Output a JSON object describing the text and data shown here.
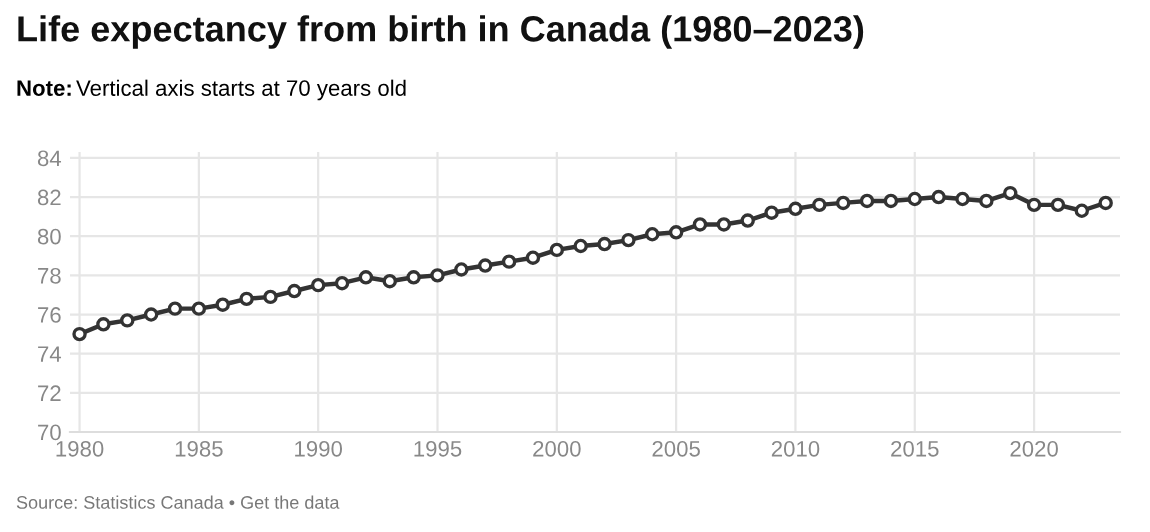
{
  "chart_data": {
    "type": "line",
    "title": "Life expectancy from birth in Canada (1980–2023)",
    "subtitle": "Note: Vertical axis starts at 70 years old",
    "x": [
      1980,
      1981,
      1982,
      1983,
      1984,
      1985,
      1986,
      1987,
      1988,
      1989,
      1990,
      1991,
      1992,
      1993,
      1994,
      1995,
      1996,
      1997,
      1998,
      1999,
      2000,
      2001,
      2002,
      2003,
      2004,
      2005,
      2006,
      2007,
      2008,
      2009,
      2010,
      2011,
      2012,
      2013,
      2014,
      2015,
      2016,
      2017,
      2018,
      2019,
      2020,
      2021,
      2022,
      2023
    ],
    "series": [
      {
        "color": "#333333",
        "values": [
          75.0,
          75.5,
          75.7,
          76.0,
          76.3,
          76.3,
          76.5,
          76.8,
          76.9,
          77.2,
          77.5,
          77.6,
          77.9,
          77.7,
          77.9,
          78.0,
          78.3,
          78.5,
          78.7,
          78.9,
          79.3,
          79.5,
          79.6,
          79.8,
          80.1,
          80.2,
          80.6,
          80.6,
          80.8,
          81.2,
          81.4,
          81.6,
          81.7,
          81.8,
          81.8,
          81.9,
          82.0,
          81.9,
          81.8,
          82.2,
          81.6,
          81.6,
          81.3,
          81.7
        ]
      }
    ],
    "xlim": [
      1979.6,
      2023.6
    ],
    "xticks": [
      1980,
      1985,
      1990,
      1995,
      2000,
      2005,
      2010,
      2015,
      2020
    ],
    "ylim": [
      70,
      84.3
    ],
    "yticks": [
      70,
      72,
      74,
      76,
      78,
      80,
      82,
      84
    ],
    "grid": true,
    "marker": "circle",
    "line_style": "solid",
    "annotations": [
      "Source: Statistics Canada • Get the data"
    ]
  }
}
